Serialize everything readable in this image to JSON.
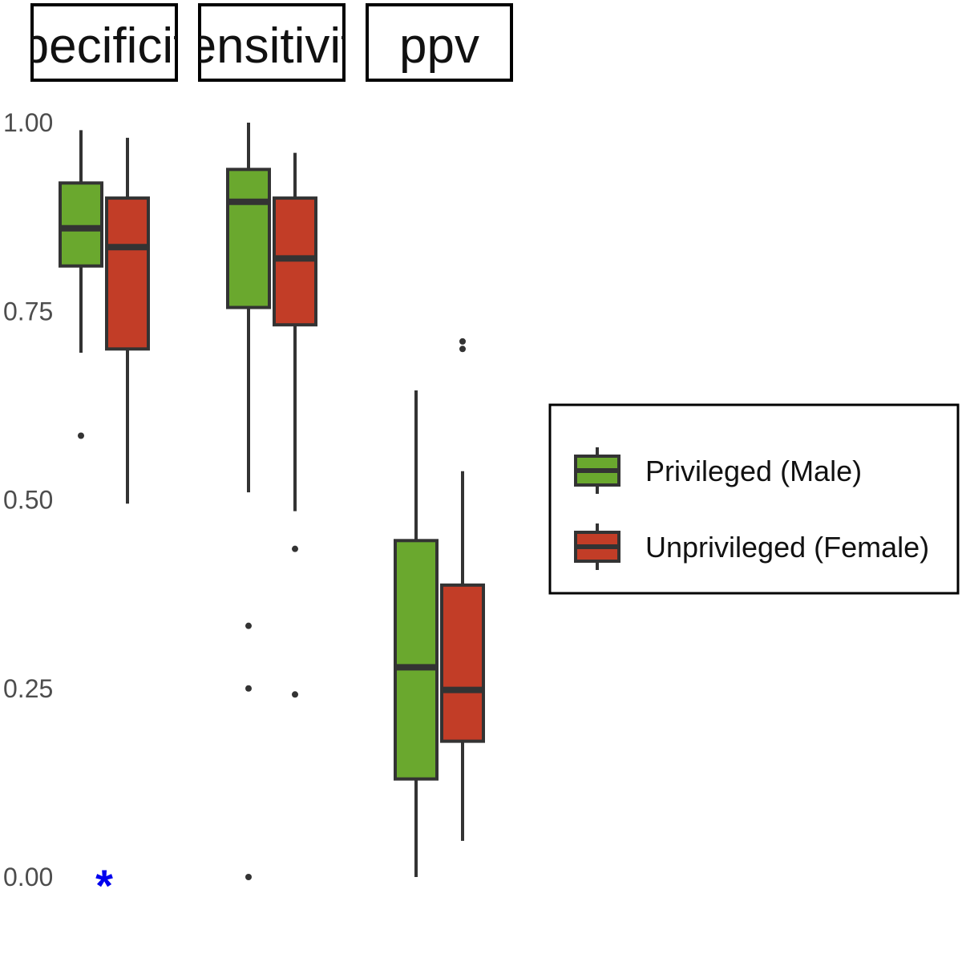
{
  "colors": {
    "privileged": "#6aa82e",
    "unprivileged": "#c23d27",
    "outline": "#333333",
    "significance": "#0000ee"
  },
  "chart_data": {
    "type": "boxplot",
    "title": "",
    "xlabel": "",
    "ylabel": "",
    "ylim": [
      0,
      1
    ],
    "yticks": [
      "0.00",
      "0.25",
      "0.50",
      "0.75",
      "1.00"
    ],
    "ytick_values": [
      0,
      0.25,
      0.5,
      0.75,
      1.0
    ],
    "grid": false,
    "legend_position": "right",
    "legend": [
      "Privileged (Male)",
      "Unprivileged (Female)"
    ],
    "panels": [
      {
        "label": "specificity",
        "significance": "*",
        "boxes": [
          {
            "group": "Privileged (Male)",
            "whisker_low": 0.695,
            "q1": 0.81,
            "median": 0.86,
            "q3": 0.92,
            "whisker_high": 0.99,
            "outliers": [
              0.585
            ]
          },
          {
            "group": "Unprivileged (Female)",
            "whisker_low": 0.495,
            "q1": 0.7,
            "median": 0.835,
            "q3": 0.9,
            "whisker_high": 0.98,
            "outliers": []
          }
        ]
      },
      {
        "label": "sensitivity",
        "significance": "",
        "boxes": [
          {
            "group": "Privileged (Male)",
            "whisker_low": 0.51,
            "q1": 0.755,
            "median": 0.895,
            "q3": 0.938,
            "whisker_high": 1.0,
            "outliers": [
              0.333,
              0.25,
              0.0
            ]
          },
          {
            "group": "Unprivileged (Female)",
            "whisker_low": 0.485,
            "q1": 0.732,
            "median": 0.82,
            "q3": 0.9,
            "whisker_high": 0.96,
            "outliers": [
              0.435,
              0.242
            ]
          }
        ]
      },
      {
        "label": "ppv",
        "significance": "",
        "boxes": [
          {
            "group": "Privileged (Male)",
            "whisker_low": 0.0,
            "q1": 0.13,
            "median": 0.278,
            "q3": 0.446,
            "whisker_high": 0.645,
            "outliers": []
          },
          {
            "group": "Unprivileged (Female)",
            "whisker_low": 0.048,
            "q1": 0.18,
            "median": 0.248,
            "q3": 0.387,
            "whisker_high": 0.538,
            "outliers": [
              0.7,
              0.71
            ]
          }
        ]
      }
    ]
  }
}
